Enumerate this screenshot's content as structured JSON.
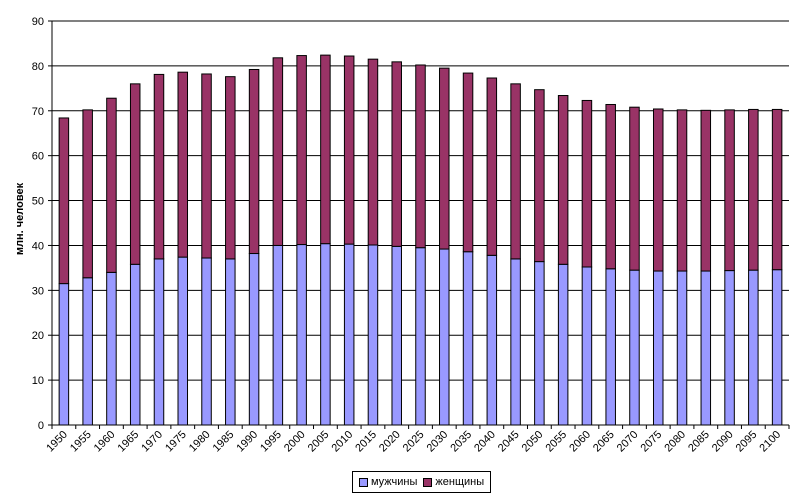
{
  "chart_data": {
    "type": "bar",
    "stacked": true,
    "ylabel": "млн. человек",
    "ylim": [
      0,
      90
    ],
    "yticks": [
      0,
      10,
      20,
      30,
      40,
      50,
      60,
      70,
      80,
      90
    ],
    "grid": true,
    "legend_position": "bottom",
    "categories": [
      "1950",
      "1955",
      "1960",
      "1965",
      "1970",
      "1975",
      "1980",
      "1985",
      "1990",
      "1995",
      "2000",
      "2005",
      "2010",
      "2015",
      "2020",
      "2025",
      "2030",
      "2035",
      "2040",
      "2045",
      "2050",
      "2055",
      "2060",
      "2065",
      "2070",
      "2075",
      "2080",
      "2085",
      "2090",
      "2095",
      "2100"
    ],
    "series": [
      {
        "name": "мужчины",
        "color": "#9999FF",
        "values": [
          31.5,
          32.8,
          34.0,
          35.8,
          37.0,
          37.4,
          37.2,
          37.0,
          38.2,
          40.0,
          40.2,
          40.4,
          40.3,
          40.1,
          39.8,
          39.5,
          39.2,
          38.6,
          37.8,
          37.0,
          36.4,
          35.8,
          35.2,
          34.8,
          34.5,
          34.3,
          34.3,
          34.3,
          34.4,
          34.5,
          34.6
        ]
      },
      {
        "name": "женщины",
        "color": "#993366",
        "values": [
          36.9,
          37.4,
          38.8,
          40.2,
          41.1,
          41.2,
          41.0,
          40.6,
          41.0,
          41.8,
          42.1,
          42.0,
          41.9,
          41.4,
          41.1,
          40.7,
          40.3,
          39.8,
          39.5,
          39.0,
          38.3,
          37.6,
          37.1,
          36.6,
          36.3,
          36.1,
          35.9,
          35.8,
          35.8,
          35.8,
          35.7
        ]
      }
    ]
  }
}
